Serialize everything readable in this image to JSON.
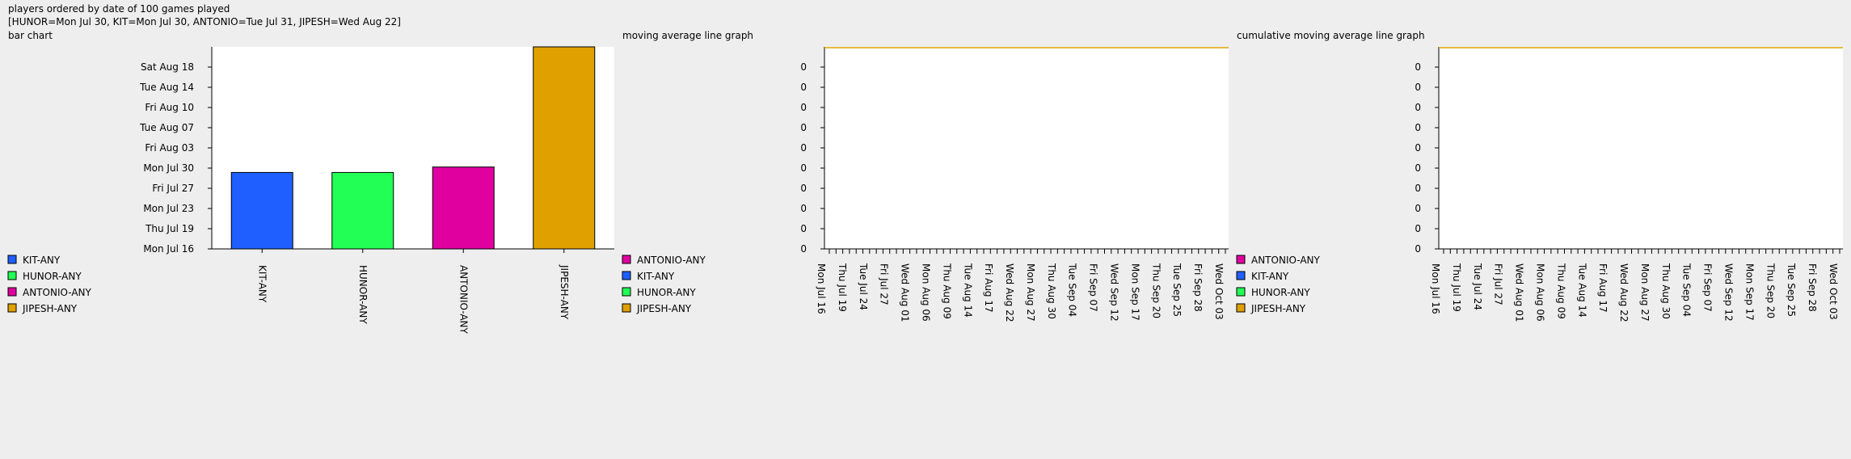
{
  "header": {
    "line1": "players ordered by date of 100 games played",
    "line2": "[HUNOR=Mon Jul 30, KIT=Mon Jul 30, ANTONIO=Tue Jul 31, JIPESH=Wed Aug 22]"
  },
  "colors": {
    "KIT-ANY": "#1f5fff",
    "HUNOR-ANY": "#22ff55",
    "ANTONIO-ANY": "#e000a0",
    "JIPESH-ANY": "#e0a000"
  },
  "chart_data": [
    {
      "type": "bar",
      "title": "bar chart",
      "categories": [
        "KIT-ANY",
        "HUNOR-ANY",
        "ANTONIO-ANY",
        "JIPESH-ANY"
      ],
      "values": [
        "2018-07-30",
        "2018-07-30",
        "2018-07-31",
        "2018-08-22"
      ],
      "y_ticks": [
        "Mon Jul 16",
        "Thu Jul 19",
        "Mon Jul 23",
        "Fri Jul 27",
        "Mon Jul 30",
        "Fri Aug 03",
        "Tue Aug 07",
        "Fri Aug 10",
        "Tue Aug 14",
        "Sat Aug 18"
      ],
      "ylim": [
        "2018-07-16",
        "2018-08-22"
      ],
      "legend": [
        "KIT-ANY",
        "HUNOR-ANY",
        "ANTONIO-ANY",
        "JIPESH-ANY"
      ],
      "legend_position": "bottom-left"
    },
    {
      "type": "line",
      "title": "moving average line graph",
      "y_ticks": [
        "0",
        "0",
        "0",
        "0",
        "0",
        "0",
        "0",
        "0",
        "0",
        "0"
      ],
      "x_ticks": [
        "Mon Jul 16",
        "Thu Jul 19",
        "Tue Jul 24",
        "Fri Jul 27",
        "Wed Aug 01",
        "Mon Aug 06",
        "Thu Aug 09",
        "Tue Aug 14",
        "Fri Aug 17",
        "Wed Aug 22",
        "Mon Aug 27",
        "Thu Aug 30",
        "Tue Sep 04",
        "Fri Sep 07",
        "Wed Sep 12",
        "Mon Sep 17",
        "Thu Sep 20",
        "Tue Sep 25",
        "Fri Sep 28",
        "Wed Oct 03"
      ],
      "series": [
        {
          "name": "ANTONIO-ANY",
          "values": []
        },
        {
          "name": "KIT-ANY",
          "values": []
        },
        {
          "name": "HUNOR-ANY",
          "values": []
        },
        {
          "name": "JIPESH-ANY",
          "values": []
        }
      ],
      "legend_position": "bottom-left"
    },
    {
      "type": "line",
      "title": "cumulative moving average line graph",
      "y_ticks": [
        "0",
        "0",
        "0",
        "0",
        "0",
        "0",
        "0",
        "0",
        "0",
        "0"
      ],
      "x_ticks": [
        "Mon Jul 16",
        "Thu Jul 19",
        "Tue Jul 24",
        "Fri Jul 27",
        "Wed Aug 01",
        "Mon Aug 06",
        "Thu Aug 09",
        "Tue Aug 14",
        "Fri Aug 17",
        "Wed Aug 22",
        "Mon Aug 27",
        "Thu Aug 30",
        "Tue Sep 04",
        "Fri Sep 07",
        "Wed Sep 12",
        "Mon Sep 17",
        "Thu Sep 20",
        "Tue Sep 25",
        "Fri Sep 28",
        "Wed Oct 03"
      ],
      "series": [
        {
          "name": "ANTONIO-ANY",
          "values": []
        },
        {
          "name": "KIT-ANY",
          "values": []
        },
        {
          "name": "HUNOR-ANY",
          "values": []
        },
        {
          "name": "JIPESH-ANY",
          "values": []
        }
      ],
      "legend_position": "bottom-left"
    }
  ]
}
